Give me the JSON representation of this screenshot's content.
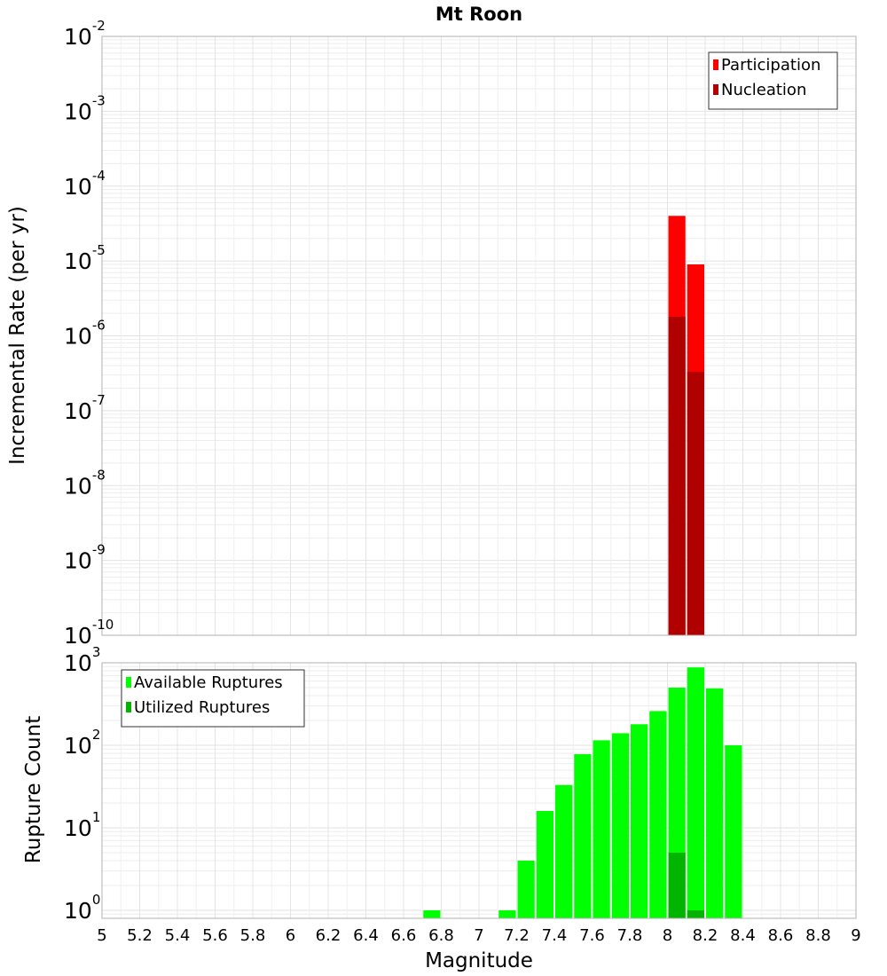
{
  "chart_data": {
    "title": "Mt Roon",
    "xlabel": "Magnitude",
    "xlim": [
      5,
      9
    ],
    "x_ticks": [
      "5",
      "5.2",
      "5.4",
      "5.6",
      "5.8",
      "6",
      "6.2",
      "6.4",
      "6.6",
      "6.8",
      "7",
      "7.2",
      "7.4",
      "7.6",
      "7.8",
      "8",
      "8.2",
      "8.4",
      "8.6",
      "8.8",
      "9"
    ],
    "panels": [
      {
        "type": "bar",
        "scale": "log",
        "ylabel": "Incremental Rate (per yr)",
        "ylim": [
          1e-10,
          0.01
        ],
        "y_tick_exponents": [
          "-10",
          "-9",
          "-8",
          "-7",
          "-6",
          "-5",
          "-4",
          "-3",
          "-2"
        ],
        "legend": {
          "position": "top-right",
          "entries": [
            "Participation",
            "Nucleation"
          ]
        },
        "series": [
          {
            "name": "Participation",
            "color": "#ff0000",
            "x": [
              8.05,
              8.15
            ],
            "values": [
              4e-05,
              9e-06
            ]
          },
          {
            "name": "Nucleation",
            "color": "#b00000",
            "x": [
              8.05,
              8.15
            ],
            "values": [
              1.8e-06,
              3.3e-07
            ]
          }
        ]
      },
      {
        "type": "bar",
        "scale": "log",
        "ylabel": "Rupture Count",
        "ylim": [
          0.8,
          1000
        ],
        "y_tick_exponents": [
          "0",
          "1",
          "2",
          "3"
        ],
        "legend": {
          "position": "top-left",
          "entries": [
            "Available Ruptures",
            "Utilized Ruptures"
          ]
        },
        "series": [
          {
            "name": "Available Ruptures",
            "color": "#00ff00",
            "x": [
              6.75,
              7.15,
              7.25,
              7.35,
              7.45,
              7.55,
              7.65,
              7.75,
              7.85,
              7.95,
              8.05,
              8.15,
              8.25,
              8.35
            ],
            "values": [
              1,
              1,
              4,
              16,
              33,
              78,
              115,
              140,
              180,
              260,
              500,
              880,
              490,
              100
            ]
          },
          {
            "name": "Utilized Ruptures",
            "color": "#00b400",
            "x": [
              8.05,
              8.15
            ],
            "values": [
              5,
              1
            ]
          }
        ]
      }
    ]
  }
}
